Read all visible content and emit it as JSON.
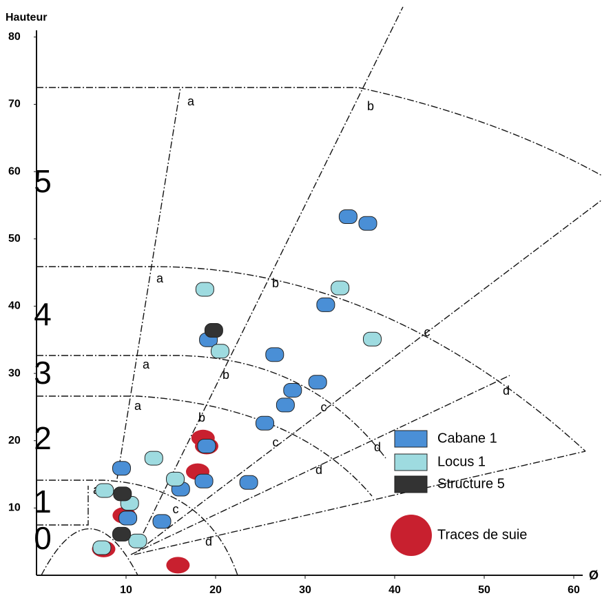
{
  "chart_data": {
    "type": "scatter",
    "x_label": "Ø",
    "y_label": "Hauteur",
    "xlim": [
      0,
      61
    ],
    "ylim": [
      0,
      81
    ],
    "xticks": [
      10,
      20,
      30,
      40,
      50,
      60
    ],
    "yticks": [
      10,
      20,
      30,
      40,
      50,
      60,
      70,
      80
    ],
    "zones": [
      "0",
      "1",
      "2",
      "3",
      "4",
      "5"
    ],
    "sector_labels": [
      "a",
      "a",
      "a",
      "a",
      "a",
      "b",
      "b",
      "b",
      "b",
      "c",
      "c",
      "c",
      "c",
      "d",
      "d",
      "d",
      "d"
    ],
    "series": [
      {
        "name": "Traces de suie",
        "color": "#c8202f",
        "x": [
          18.6,
          19.0,
          18.0,
          9.8,
          7.5,
          15.8
        ],
        "y": [
          20.4,
          19.2,
          15.4,
          8.9,
          3.9,
          1.5
        ]
      },
      {
        "name": "Cabane 1",
        "color": "#4a8fd6",
        "x": [
          34.8,
          37.0,
          32.3,
          26.6,
          28.6,
          27.8,
          31.4,
          25.5,
          23.7,
          9.5,
          16.1,
          18.7,
          19.0,
          14.0,
          19.2,
          10.2
        ],
        "y": [
          53.3,
          52.3,
          40.2,
          32.8,
          27.5,
          25.3,
          28.7,
          22.6,
          13.8,
          15.9,
          12.8,
          14.0,
          19.2,
          8.0,
          35.0,
          8.5
        ]
      },
      {
        "name": "Locus 1",
        "color": "#9edbe0",
        "x": [
          18.8,
          33.9,
          37.5,
          20.5,
          13.1,
          15.5,
          7.6,
          10.4,
          11.3,
          7.3
        ],
        "y": [
          42.5,
          42.7,
          35.1,
          33.3,
          17.4,
          14.3,
          12.6,
          10.7,
          5.1,
          4.1
        ]
      },
      {
        "name": "Structure 5",
        "color": "#333333",
        "x": [
          19.8,
          9.6,
          9.5
        ],
        "y": [
          36.4,
          12.1,
          6.1
        ]
      }
    ]
  }
}
